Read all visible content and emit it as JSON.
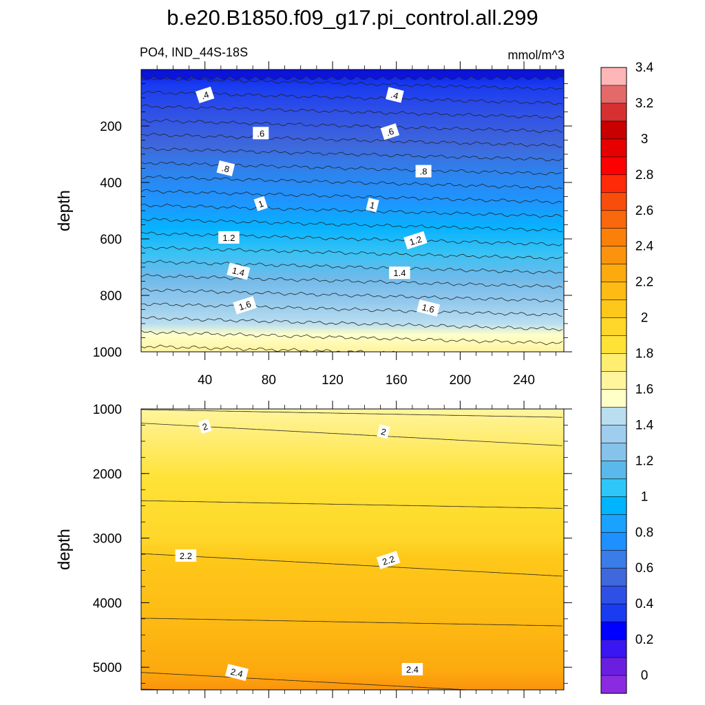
{
  "chart_data": {
    "type": "contour",
    "title": "b.e20.B1850.f09_g17.pi_control.all.299",
    "variable_label": "PO4, IND_44S-18S",
    "units_label": "mmol/m^3",
    "ylabel": "depth",
    "colorbar": {
      "levels": [
        "0",
        "0.2",
        "0.4",
        "0.6",
        "0.8",
        "1",
        "1.2",
        "1.4",
        "1.6",
        "1.8",
        "2",
        "2.2",
        "2.4",
        "2.6",
        "2.8",
        "3",
        "3.2",
        "3.4"
      ],
      "colors": [
        "#8a2be2",
        "#6a1fe0",
        "#3a17f0",
        "#0000ff",
        "#1a3cf0",
        "#2f50e6",
        "#3f68dc",
        "#3a7ce8",
        "#1e90ff",
        "#1aa2ff",
        "#00b4ff",
        "#2ec6f8",
        "#5ab9ea",
        "#86c3ea",
        "#9fcdee",
        "#b9def0",
        "#ffffc8",
        "#fff59c",
        "#ffee70",
        "#ffe236",
        "#fed72a",
        "#fec81a",
        "#fdbb14",
        "#fcaa0e",
        "#fb940c",
        "#fa800a",
        "#f9680c",
        "#f84e0c",
        "#ff2a08",
        "#ff0000",
        "#e60000",
        "#c80000",
        "#d73030",
        "#e46a6a",
        "#ffb6b6"
      ]
    },
    "panels": [
      {
        "name": "upper",
        "ylim": [
          0,
          1000
        ],
        "yticks": [
          200,
          400,
          600,
          800,
          1000
        ],
        "xlim": [
          0,
          265
        ],
        "xticks": [
          40,
          80,
          120,
          160,
          200,
          240
        ],
        "contour_labels": [
          {
            "text": ".4",
            "x": 40,
            "y": 90
          },
          {
            "text": ".4",
            "x": 159,
            "y": 90
          },
          {
            "text": ".6",
            "x": 75,
            "y": 225
          },
          {
            "text": ".6",
            "x": 156,
            "y": 220
          },
          {
            "text": ".8",
            "x": 53,
            "y": 350
          },
          {
            "text": ".8",
            "x": 177,
            "y": 360
          },
          {
            "text": "1",
            "x": 75,
            "y": 475
          },
          {
            "text": "1",
            "x": 145,
            "y": 480
          },
          {
            "text": "1.2",
            "x": 55,
            "y": 595
          },
          {
            "text": "1.2",
            "x": 172,
            "y": 605
          },
          {
            "text": "1.4",
            "x": 61,
            "y": 715
          },
          {
            "text": "1.4",
            "x": 162,
            "y": 720
          },
          {
            "text": "1.6",
            "x": 65,
            "y": 835
          },
          {
            "text": "1.6",
            "x": 180,
            "y": 845
          }
        ]
      },
      {
        "name": "lower",
        "ylim": [
          1000,
          5350
        ],
        "yticks": [
          1000,
          2000,
          3000,
          4000,
          5000
        ],
        "xlim": [
          0,
          265
        ],
        "xticks": [],
        "contour_labels": [
          {
            "text": "2",
            "x": 40,
            "y": 1270
          },
          {
            "text": "2",
            "x": 152,
            "y": 1350
          },
          {
            "text": "2.2",
            "x": 28,
            "y": 3270
          },
          {
            "text": "2.2",
            "x": 155,
            "y": 3340
          },
          {
            "text": "2.4",
            "x": 60,
            "y": 5080
          },
          {
            "text": "2.4",
            "x": 170,
            "y": 5030
          }
        ]
      }
    ]
  }
}
